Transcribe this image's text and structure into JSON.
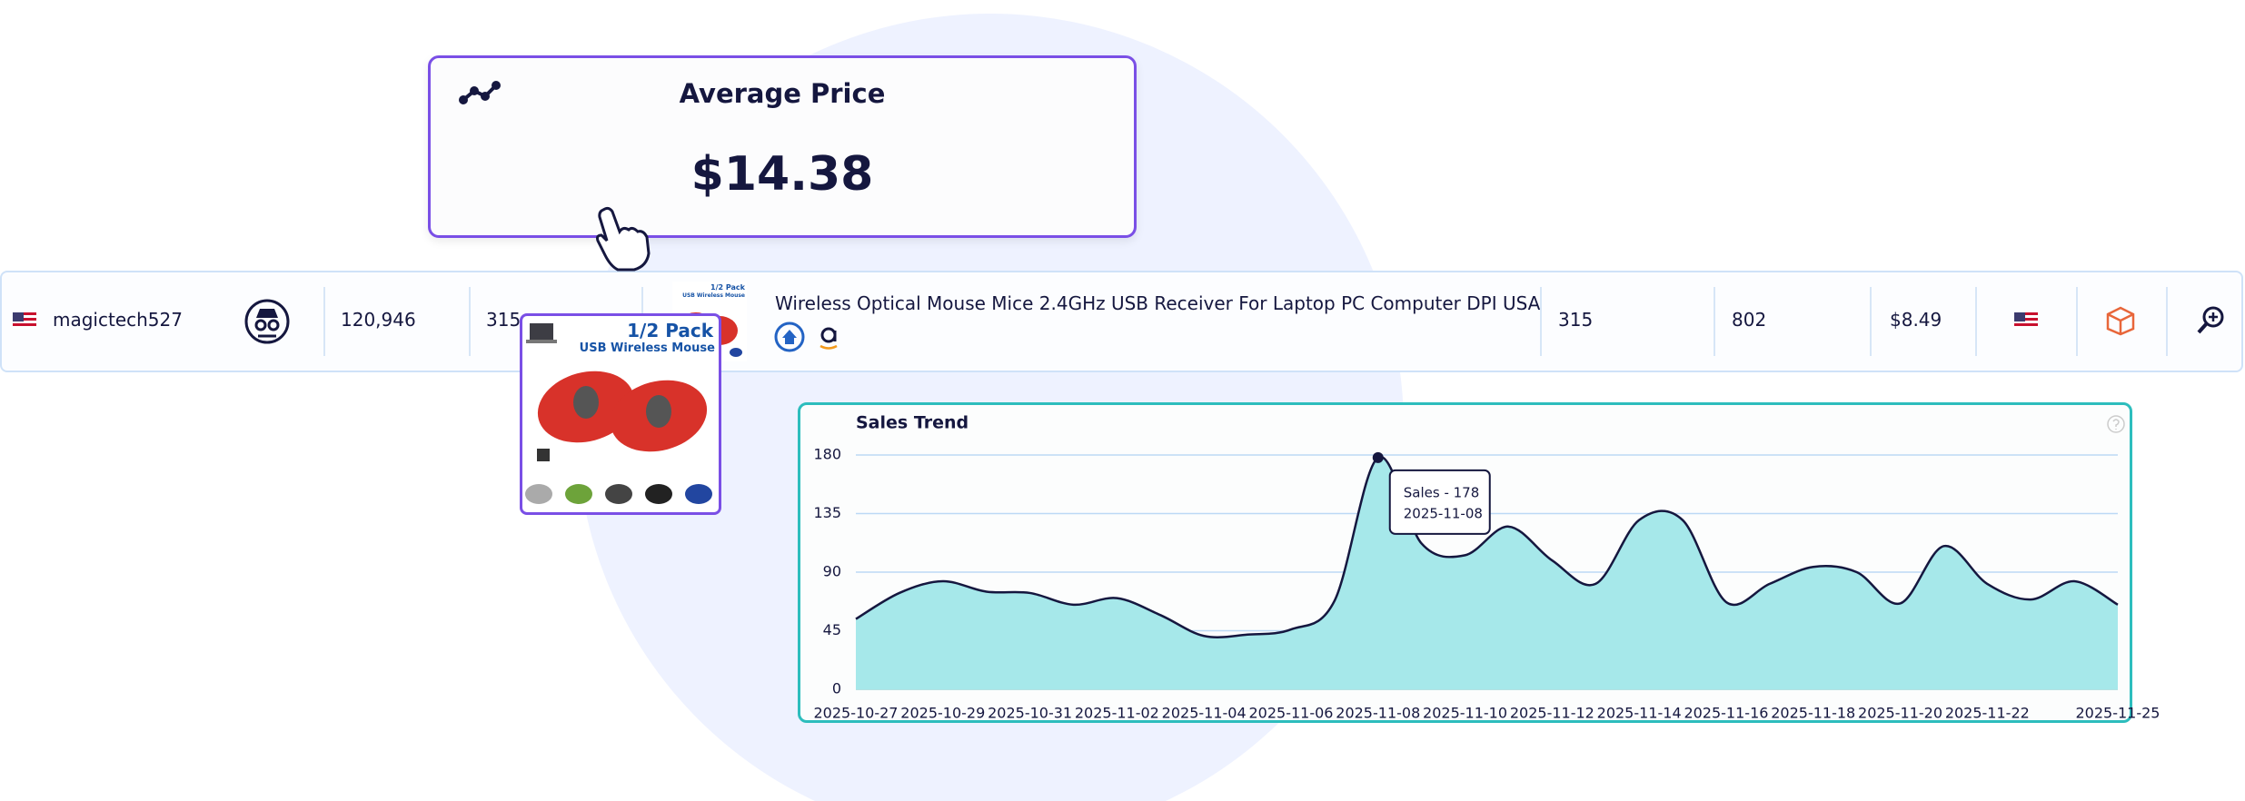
{
  "card": {
    "title": "Average Price",
    "value": "$14.38"
  },
  "row": {
    "seller": "magictech527",
    "values": [
      "120,946",
      "315"
    ],
    "product_title": "Wireless Optical Mouse Mice 2.4GHz USB Receiver For Laptop PC Computer DPI USA",
    "metrics": [
      "315",
      "802",
      "$8.49"
    ]
  },
  "product_image": {
    "badge": "1/2 Pack",
    "caption": "USB Wireless Mouse"
  },
  "chart_data": {
    "type": "area",
    "title": "Sales Trend",
    "categories": [
      "2025-10-27",
      null,
      "2025-10-29",
      null,
      "2025-10-31",
      null,
      "2025-11-02",
      null,
      "2025-11-04",
      null,
      "2025-11-06",
      null,
      "2025-11-08",
      null,
      "2025-11-10",
      null,
      "2025-11-12",
      null,
      "2025-11-14",
      null,
      "2025-11-16",
      null,
      "2025-11-18",
      null,
      "2025-11-20",
      null,
      "2025-11-22",
      null,
      null,
      "2025-11-25"
    ],
    "values": [
      54,
      74,
      83,
      75,
      74,
      65,
      70,
      57,
      41,
      42,
      46,
      68,
      178,
      112,
      103,
      125,
      99,
      81,
      130,
      130,
      67,
      81,
      94,
      90,
      66,
      110,
      81,
      69,
      83,
      65
    ],
    "color": "#a6e8ea",
    "line_color": "#15173f",
    "ylim": [
      0,
      180
    ],
    "yticks": [
      0,
      45,
      90,
      135,
      180
    ],
    "grid": true,
    "tooltip": {
      "label": "Sales - 178",
      "date": "2025-11-08"
    }
  }
}
